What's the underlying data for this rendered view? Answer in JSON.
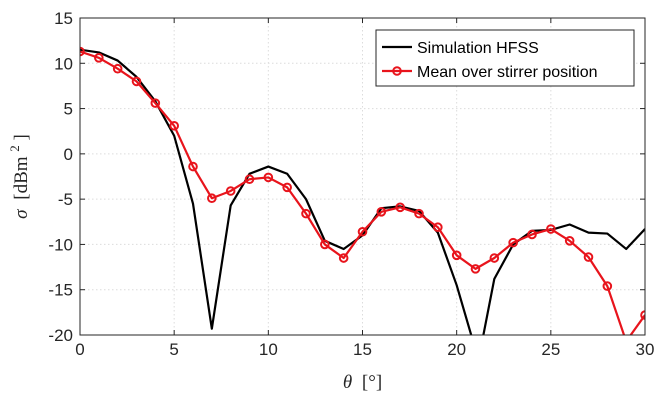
{
  "chart_data": {
    "type": "line",
    "title": "",
    "xlabel_symbol": "θ",
    "xlabel_unit": "[°]",
    "ylabel_symbol": "σ",
    "ylabel_unit": "[dBm",
    "ylabel_unit_sup": "2",
    "ylabel_unit_close": "]",
    "xlim": [
      0,
      30
    ],
    "ylim": [
      -20,
      15
    ],
    "xticks": [
      0,
      5,
      10,
      15,
      20,
      25,
      30
    ],
    "yticks": [
      -20,
      -15,
      -10,
      -5,
      0,
      5,
      10,
      15
    ],
    "grid": true,
    "legend_position": "top-right",
    "series": [
      {
        "name": "Simulation HFSS",
        "color": "#000000",
        "marker": "none",
        "x": [
          0,
          1,
          2,
          3,
          4,
          5,
          6,
          7,
          8,
          9,
          10,
          11,
          12,
          13,
          14,
          15,
          16,
          17,
          18,
          19,
          20,
          20.8,
          21.4,
          22,
          23,
          24,
          25,
          26,
          27,
          28,
          29,
          30
        ],
        "y": [
          11.5,
          11.2,
          10.3,
          8.5,
          5.8,
          2.0,
          -5.5,
          -19.3,
          -5.7,
          -2.2,
          -1.4,
          -2.2,
          -5.0,
          -9.6,
          -10.5,
          -9.0,
          -6.0,
          -5.8,
          -6.3,
          -8.7,
          -14.5,
          -20.2,
          -20.2,
          -13.8,
          -10.0,
          -8.5,
          -8.4,
          -7.8,
          -8.7,
          -8.8,
          -10.5,
          -8.3
        ]
      },
      {
        "name": "Mean over stirrer position",
        "color": "#e8141c",
        "marker": "circle",
        "x": [
          0,
          1,
          2,
          3,
          4,
          5,
          6,
          7,
          8,
          9,
          10,
          11,
          12,
          13,
          14,
          15,
          16,
          17,
          18,
          19,
          20,
          21,
          22,
          23,
          24,
          25,
          26,
          27,
          28,
          29,
          30
        ],
        "y": [
          11.3,
          10.6,
          9.4,
          8.0,
          5.6,
          3.1,
          -1.4,
          -4.9,
          -4.1,
          -2.8,
          -2.6,
          -3.7,
          -6.6,
          -10.0,
          -11.5,
          -8.6,
          -6.4,
          -5.9,
          -6.6,
          -8.1,
          -11.2,
          -12.7,
          -11.5,
          -9.8,
          -8.9,
          -8.3,
          -9.6,
          -11.4,
          -14.6,
          -20.7,
          -17.8
        ]
      }
    ]
  }
}
